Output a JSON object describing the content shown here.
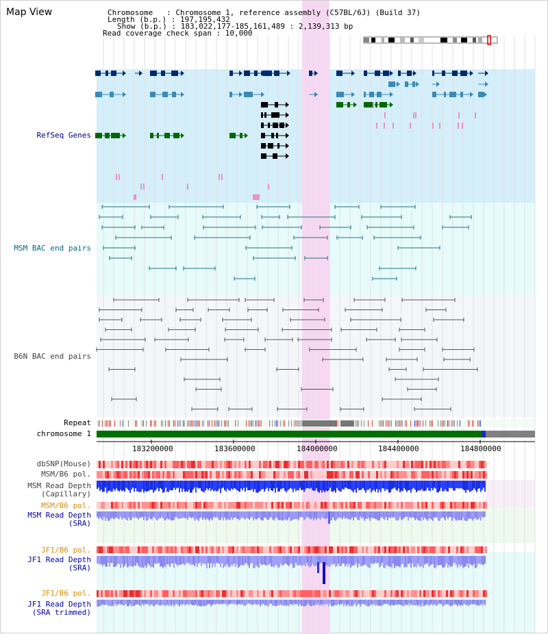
{
  "view": {
    "title": "Map View",
    "info_lines": [
      "Chromosome   : Chromosome 1, reference assembly (C57BL/6J) (Build 37)",
      "Length (b.p.) : 197,195,432",
      "Show (b.p.) : 183,022,177-185,161,489 : 2,139,313 bp",
      "Read coverage check span : 10,000"
    ]
  },
  "tracks": {
    "refseq": {
      "label": "RefSeq Genes",
      "color": "#000080"
    },
    "msm_bac": {
      "label": "MSM BAC end pairs",
      "color": "#006680"
    },
    "b6n_bac": {
      "label": "B6N BAC end pairs",
      "color": "#404040"
    },
    "repeat": {
      "label": "Repeat"
    },
    "chromosome": {
      "label": "chromosome 1"
    },
    "dbsnp": {
      "label": "dbSNP(Mouse)"
    },
    "msm_b6_pol": {
      "label": "MSM/B6 pol."
    },
    "msm_depth_cap": {
      "label_line1": "MSM Read Depth",
      "label_line2": "(Capillary)"
    },
    "msm_b6_pol_sra": {
      "label": "MSM/B6 pol."
    },
    "msm_depth_sra": {
      "label_line1": "MSM Read Depth",
      "label_line2": "(SRA)"
    },
    "jf1_b6_pol": {
      "label": "JF1/B6 pol."
    },
    "jf1_depth_sra": {
      "label_line1": "JF1 Read Depth",
      "label_line2": "(SRA)"
    },
    "jf1_b6_pol_trim": {
      "label": "JF1/B6 pol."
    },
    "jf1_depth_trim": {
      "label_line1": "JF1 Read Depth",
      "label_line2": "(SRA trimmed)"
    }
  },
  "axis": {
    "ticks": [
      "183200000",
      "183600000",
      "184000000",
      "184400000",
      "184800000"
    ]
  },
  "colors": {
    "refseq_bg": "#d4eefa",
    "msm_bac_bg": "#e6fbfa",
    "b6n_bac_bg": "#f4f6fa",
    "highlight": "#f7d8f2",
    "chromosome_bar": "#007000",
    "depth_dark": "#1a2fe0",
    "depth_light": "#8a8af0",
    "pol_red": "#ff5a5a",
    "label_orange": "#e08a00",
    "label_blue": "#0000a0",
    "label_gray": "#404040"
  }
}
